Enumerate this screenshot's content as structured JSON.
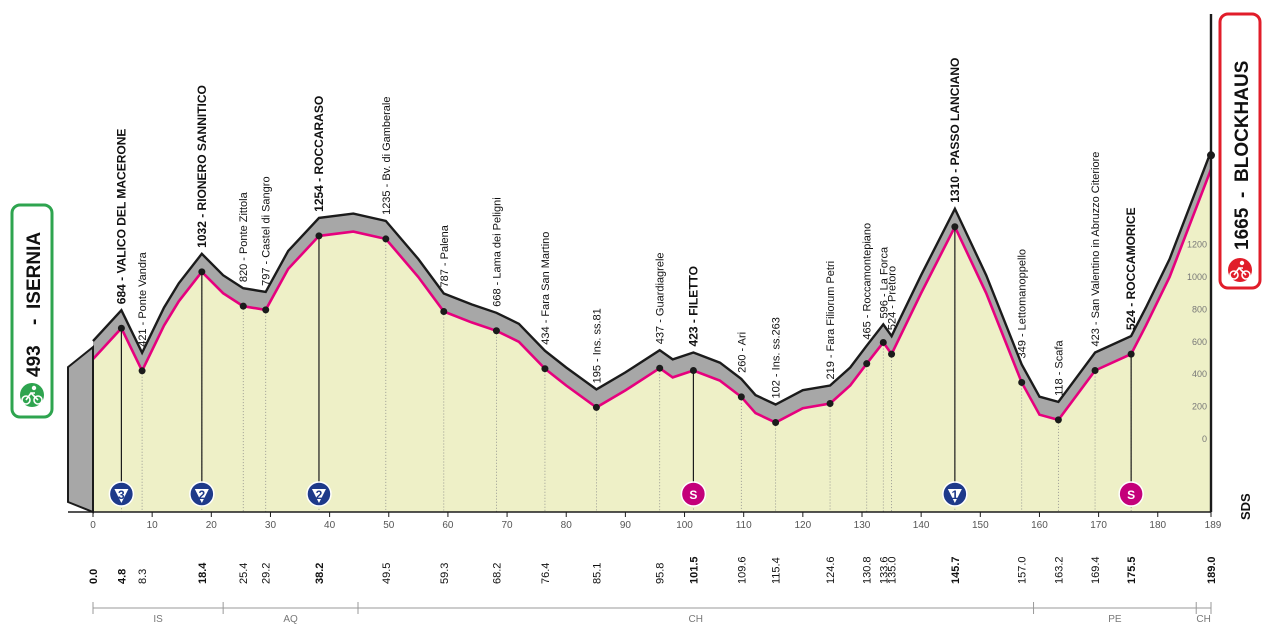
{
  "profile": {
    "distance_max_km": 189.0,
    "elev_ticks": [
      0,
      200,
      400,
      600,
      800,
      1000,
      1200
    ],
    "axis_ticks": [
      "0",
      "10",
      "20",
      "30",
      "40",
      "50",
      "60",
      "70",
      "80",
      "90",
      "100",
      "110",
      "120",
      "130",
      "140",
      "150",
      "160",
      "170",
      "180",
      "189"
    ],
    "colors": {
      "pink": "#e6007e",
      "grey": "#a7a7a7",
      "fill": "#eef0c7",
      "dark": "#1b1b1b"
    },
    "points": [
      [
        0,
        493
      ],
      [
        4.8,
        684
      ],
      [
        8.3,
        421
      ],
      [
        12,
        700
      ],
      [
        14.5,
        850
      ],
      [
        18.4,
        1032
      ],
      [
        22,
        900
      ],
      [
        25.4,
        820
      ],
      [
        29.2,
        797
      ],
      [
        33,
        1050
      ],
      [
        38.2,
        1254
      ],
      [
        44,
        1280
      ],
      [
        49.5,
        1235
      ],
      [
        55,
        1000
      ],
      [
        59.3,
        787
      ],
      [
        64,
        720
      ],
      [
        68.2,
        668
      ],
      [
        72,
        600
      ],
      [
        76.4,
        434
      ],
      [
        80,
        330
      ],
      [
        85.1,
        195
      ],
      [
        90,
        300
      ],
      [
        95.8,
        437
      ],
      [
        98,
        380
      ],
      [
        101.5,
        423
      ],
      [
        106,
        360
      ],
      [
        109.6,
        260
      ],
      [
        112,
        160
      ],
      [
        115.4,
        102
      ],
      [
        120,
        190
      ],
      [
        124.6,
        219
      ],
      [
        128,
        330
      ],
      [
        130.8,
        465
      ],
      [
        133.6,
        596
      ],
      [
        135,
        524
      ],
      [
        140,
        900
      ],
      [
        145.7,
        1310
      ],
      [
        151,
        900
      ],
      [
        157,
        349
      ],
      [
        160,
        150
      ],
      [
        163.2,
        118
      ],
      [
        169.4,
        423
      ],
      [
        175.5,
        524
      ],
      [
        178,
        700
      ],
      [
        182,
        1000
      ],
      [
        189,
        1665
      ]
    ]
  },
  "start": {
    "elev": "493",
    "name": "ISERNIA",
    "icon": "cyclist-icon"
  },
  "finish": {
    "elev": "1665",
    "name": "BLOCKHAUS",
    "icon": "cyclist-icon"
  },
  "sds": "SDS",
  "labels": [
    {
      "km": 4.8,
      "elev": 684,
      "text": "684 - VALICO DEL MACERONE",
      "bold": true,
      "type": "gpm",
      "mark": "3"
    },
    {
      "km": 8.3,
      "elev": 421,
      "text": "421 - Ponte Vandra",
      "bold": false
    },
    {
      "km": 18.4,
      "elev": 1032,
      "text": "1032 - RIONERO SANNITICO",
      "bold": true,
      "type": "gpm",
      "mark": "2"
    },
    {
      "km": 25.4,
      "elev": 820,
      "text": "820 - Ponte Zittola",
      "bold": false
    },
    {
      "km": 29.2,
      "elev": 797,
      "text": "797 - Castel di Sangro",
      "bold": false
    },
    {
      "km": 38.2,
      "elev": 1254,
      "text": "1254 - ROCCARASO",
      "bold": true,
      "type": "gpm",
      "mark": "2"
    },
    {
      "km": 49.5,
      "elev": 1235,
      "text": "1235 - Bv. di Gamberale",
      "bold": false
    },
    {
      "km": 59.3,
      "elev": 787,
      "text": "787 - Palena",
      "bold": false
    },
    {
      "km": 68.2,
      "elev": 668,
      "text": "668 - Lama dei Peligni",
      "bold": false
    },
    {
      "km": 76.4,
      "elev": 434,
      "text": "434 - Fara San Martino",
      "bold": false
    },
    {
      "km": 85.1,
      "elev": 195,
      "text": "195 - Ins. ss.81",
      "bold": false
    },
    {
      "km": 95.8,
      "elev": 437,
      "text": "437 - Guardiagrele",
      "bold": false
    },
    {
      "km": 101.5,
      "elev": 423,
      "text": "423 - FILETTO",
      "bold": true,
      "type": "sprint",
      "mark": "S"
    },
    {
      "km": 109.6,
      "elev": 260,
      "text": "260 - Ari",
      "bold": false
    },
    {
      "km": 115.4,
      "elev": 102,
      "text": "102 - Ins. ss.263",
      "bold": false
    },
    {
      "km": 124.6,
      "elev": 219,
      "text": "219 - Fara Filiorum Petri",
      "bold": false
    },
    {
      "km": 130.8,
      "elev": 465,
      "text": "465 - Roccamontepiano",
      "bold": false
    },
    {
      "km": 133.6,
      "elev": 596,
      "text": "596 - La Forca",
      "bold": false
    },
    {
      "km": 135.0,
      "elev": 524,
      "text": "524 - Pretoro",
      "bold": false
    },
    {
      "km": 145.7,
      "elev": 1310,
      "text": "1310 - PASSO LANCIANO",
      "bold": true,
      "type": "gpm",
      "mark": "1"
    },
    {
      "km": 157.0,
      "elev": 349,
      "text": "349 - Lettomanoppello",
      "bold": false
    },
    {
      "km": 163.2,
      "elev": 118,
      "text": "118 - Scafa",
      "bold": false
    },
    {
      "km": 169.4,
      "elev": 423,
      "text": "423 - San Valentino in Abruzzo Citeriore",
      "bold": false
    },
    {
      "km": 175.5,
      "elev": 524,
      "text": "524 - ROCCAMORICE",
      "bold": true,
      "type": "sprint",
      "mark": "S"
    }
  ],
  "km_marks": [
    {
      "km": 0,
      "text": "0.0",
      "bold": true
    },
    {
      "km": 4.8,
      "text": "4.8",
      "bold": true
    },
    {
      "km": 8.3,
      "text": "8.3",
      "bold": false
    },
    {
      "km": 18.4,
      "text": "18.4",
      "bold": true
    },
    {
      "km": 25.4,
      "text": "25.4",
      "bold": false
    },
    {
      "km": 29.2,
      "text": "29.2",
      "bold": false
    },
    {
      "km": 38.2,
      "text": "38.2",
      "bold": true
    },
    {
      "km": 49.5,
      "text": "49.5",
      "bold": false
    },
    {
      "km": 59.3,
      "text": "59.3",
      "bold": false
    },
    {
      "km": 68.2,
      "text": "68.2",
      "bold": false
    },
    {
      "km": 76.4,
      "text": "76.4",
      "bold": false
    },
    {
      "km": 85.1,
      "text": "85.1",
      "bold": false
    },
    {
      "km": 95.8,
      "text": "95.8",
      "bold": false
    },
    {
      "km": 101.5,
      "text": "101.5",
      "bold": true
    },
    {
      "km": 109.6,
      "text": "109.6",
      "bold": false
    },
    {
      "km": 115.4,
      "text": "115.4",
      "bold": false
    },
    {
      "km": 124.6,
      "text": "124.6",
      "bold": false
    },
    {
      "km": 130.8,
      "text": "130.8",
      "bold": false
    },
    {
      "km": 133.6,
      "text": "133.6",
      "bold": false
    },
    {
      "km": 135.0,
      "text": "135.0",
      "bold": false
    },
    {
      "km": 145.7,
      "text": "145.7",
      "bold": true
    },
    {
      "km": 157.0,
      "text": "157.0",
      "bold": false
    },
    {
      "km": 163.2,
      "text": "163.2",
      "bold": false
    },
    {
      "km": 169.4,
      "text": "169.4",
      "bold": false
    },
    {
      "km": 175.5,
      "text": "175.5",
      "bold": true
    },
    {
      "km": 189.0,
      "text": "189.0",
      "bold": true
    }
  ],
  "regions": [
    {
      "from": 0,
      "to": 22,
      "label": "IS"
    },
    {
      "from": 22,
      "to": 44.8,
      "label": "AQ"
    },
    {
      "from": 44.8,
      "to": 159,
      "label": "CH"
    },
    {
      "from": 159,
      "to": 186.5,
      "label": "PE"
    },
    {
      "from": 186.5,
      "to": 189,
      "label": "CH"
    }
  ]
}
